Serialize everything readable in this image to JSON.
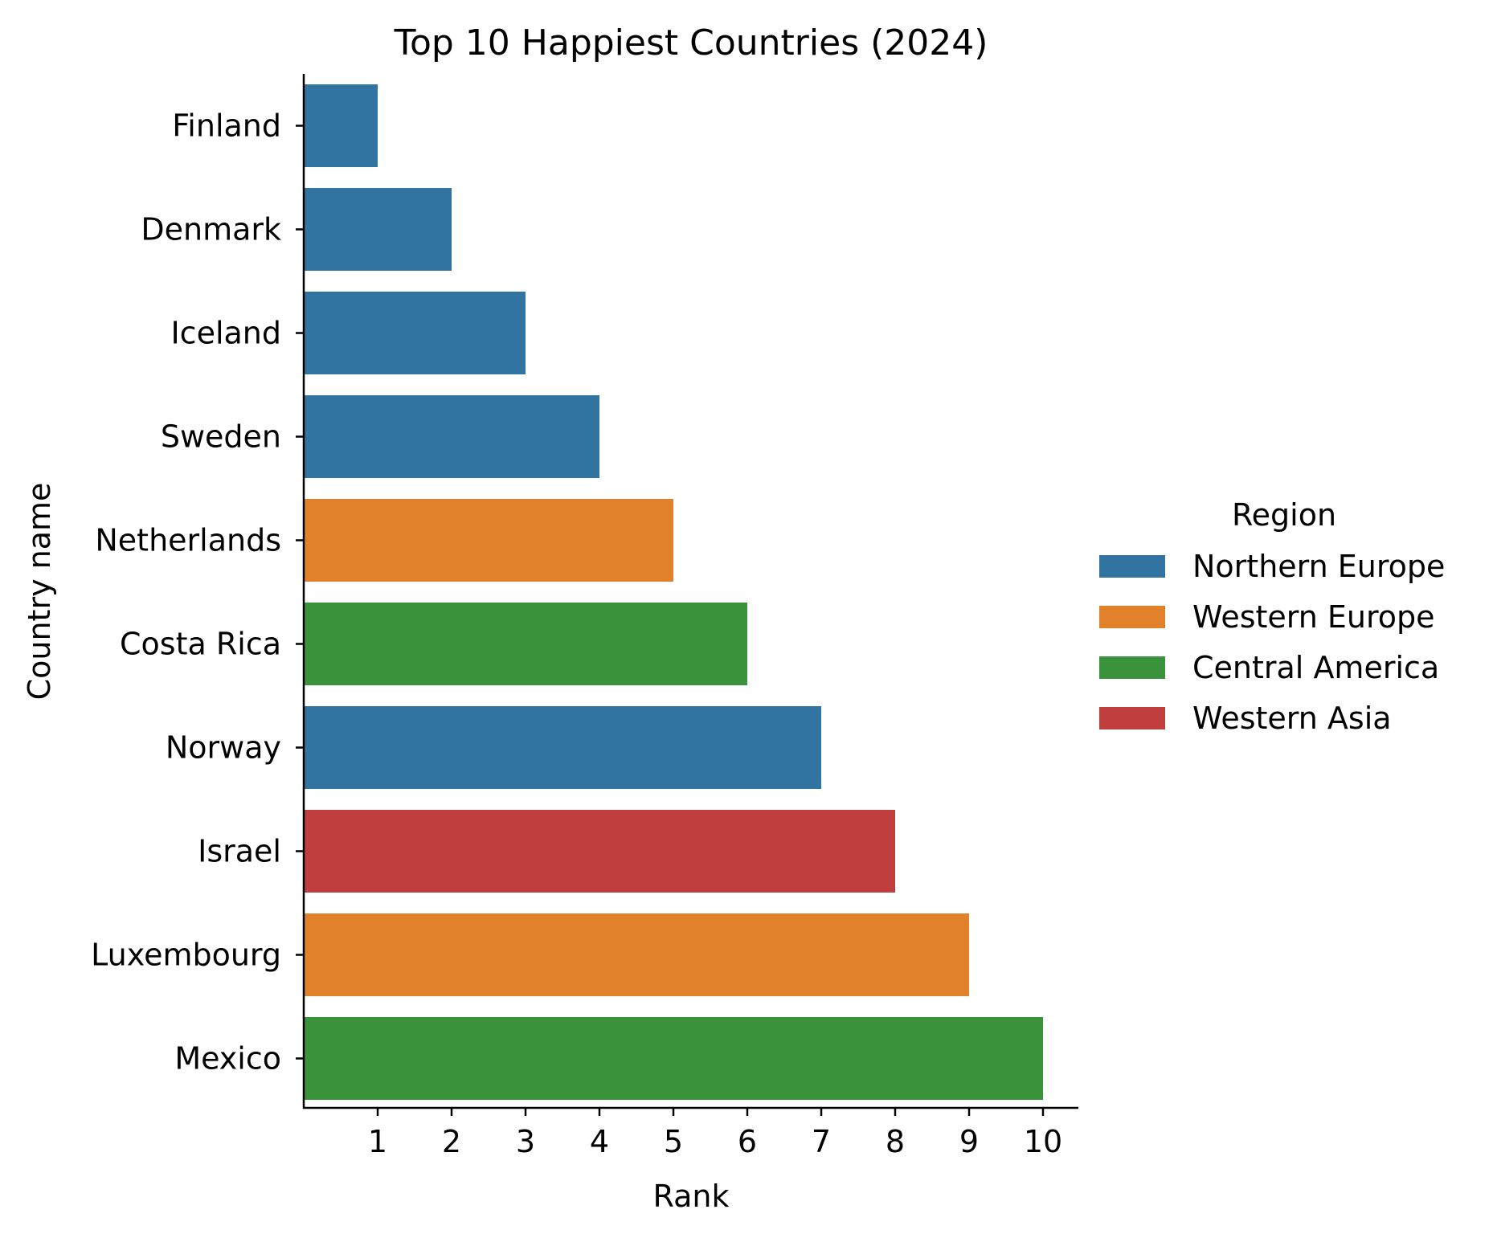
{
  "chart_data": {
    "type": "bar",
    "orientation": "horizontal",
    "title": "Top 10 Happiest Countries (2024)",
    "xlabel": "Rank",
    "ylabel": "Country name",
    "xlim": [
      0,
      10.5
    ],
    "xticks": [
      1,
      2,
      3,
      4,
      5,
      6,
      7,
      8,
      9,
      10
    ],
    "grid": false,
    "legend": {
      "title": "Region",
      "placement": "center-right",
      "entries": [
        {
          "name": "Northern Europe",
          "color": "#3274a1"
        },
        {
          "name": "Western Europe",
          "color": "#e1812c"
        },
        {
          "name": "Central America",
          "color": "#3a923a"
        },
        {
          "name": "Western Asia",
          "color": "#c03d3e"
        }
      ]
    },
    "categories": [
      "Finland",
      "Denmark",
      "Iceland",
      "Sweden",
      "Netherlands",
      "Costa Rica",
      "Norway",
      "Israel",
      "Luxembourg",
      "Mexico"
    ],
    "values": [
      1,
      2,
      3,
      4,
      5,
      6,
      7,
      8,
      9,
      10
    ],
    "regions": [
      "Northern Europe",
      "Northern Europe",
      "Northern Europe",
      "Northern Europe",
      "Western Europe",
      "Central America",
      "Northern Europe",
      "Western Asia",
      "Western Europe",
      "Central America"
    ]
  }
}
